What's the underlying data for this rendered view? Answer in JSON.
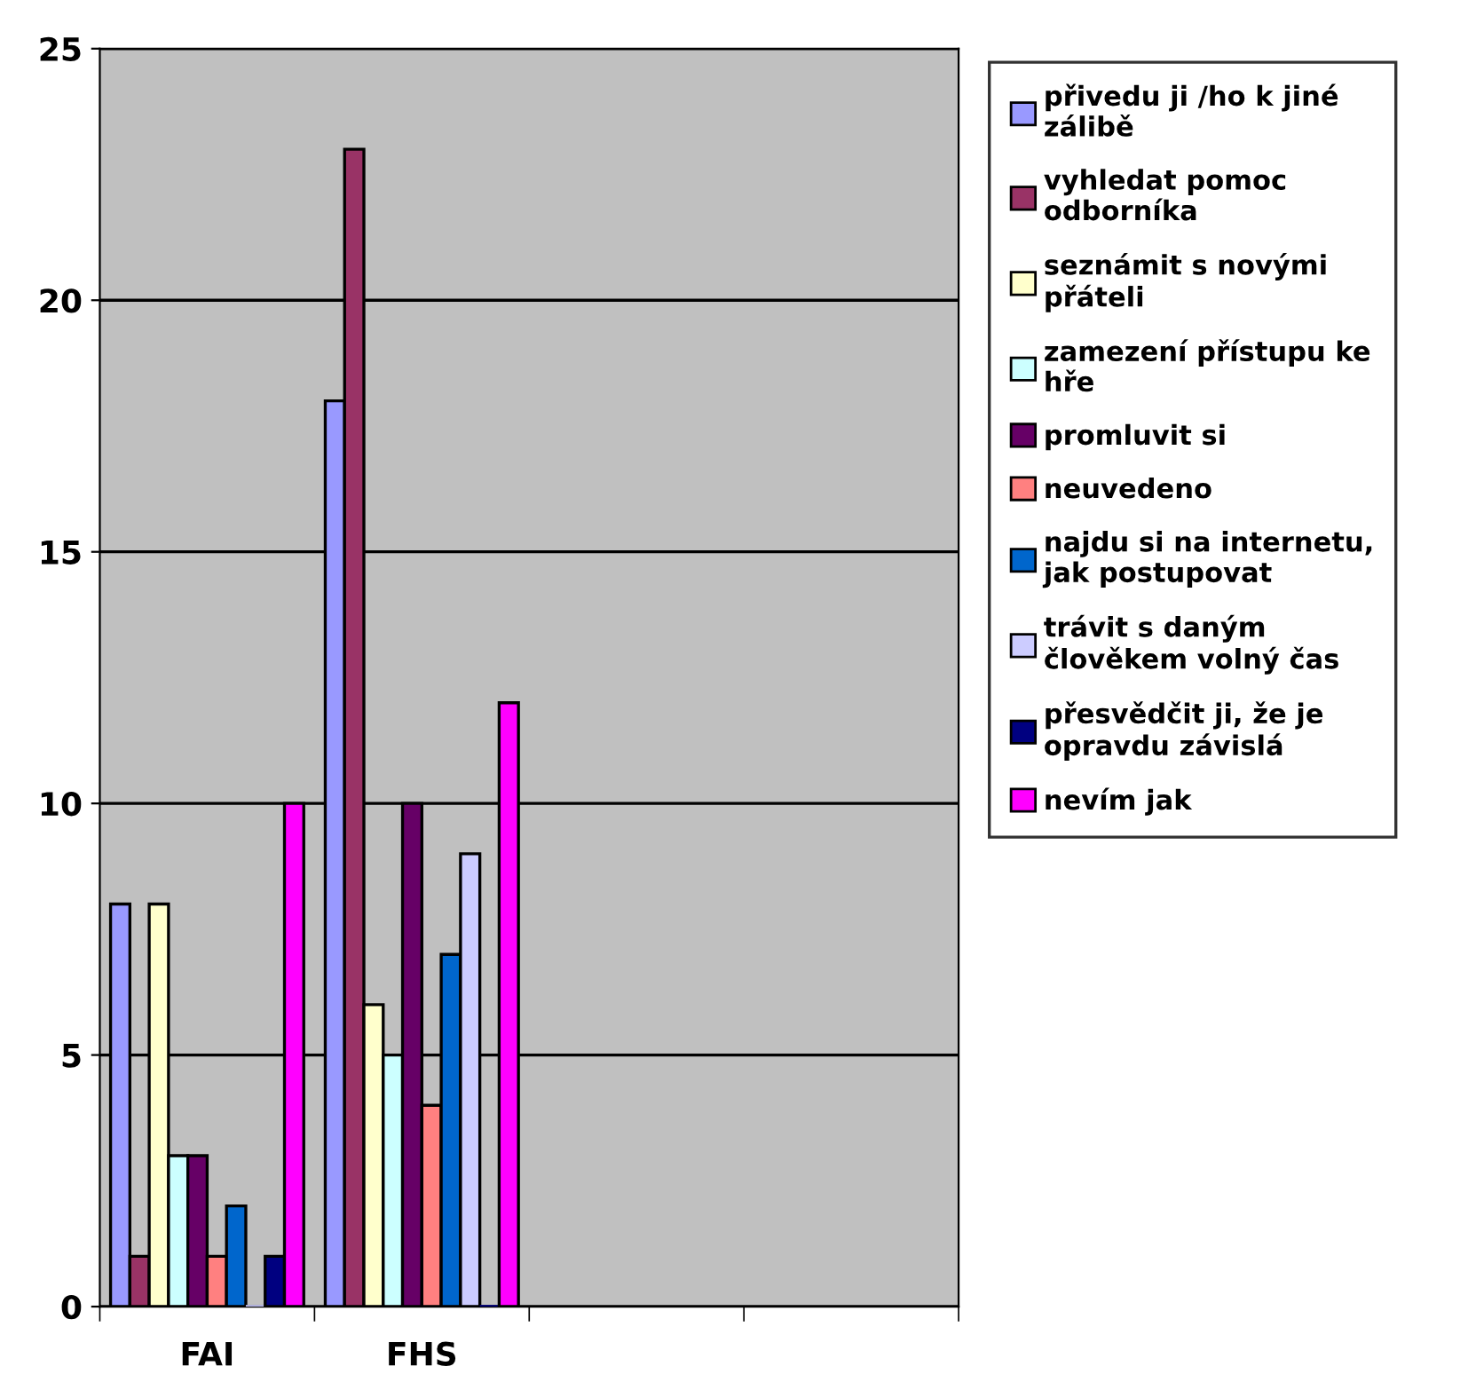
{
  "chart_data": {
    "type": "bar",
    "categories": [
      "FAI",
      "FHS",
      null,
      null
    ],
    "series": [
      {
        "name": "přivedu ji /ho k jiné zálibě",
        "color": "#9999ff",
        "values": [
          8,
          18,
          null,
          null
        ]
      },
      {
        "name": "vyhledat pomoc odborníka",
        "color": "#993366",
        "values": [
          1,
          23,
          null,
          null
        ]
      },
      {
        "name": "seznámit s novými přáteli",
        "color": "#ffffcc",
        "values": [
          8,
          6,
          null,
          null
        ]
      },
      {
        "name": "zamezení přístupu ke hře",
        "color": "#ccffff",
        "values": [
          3,
          5,
          null,
          null
        ]
      },
      {
        "name": "promluvit si",
        "color": "#660066",
        "values": [
          3,
          10,
          null,
          null
        ]
      },
      {
        "name": "neuvedeno",
        "color": "#ff8080",
        "values": [
          1,
          4,
          null,
          null
        ]
      },
      {
        "name": "najdu si na internetu, jak postupovat",
        "color": "#0066cc",
        "values": [
          2,
          7,
          null,
          null
        ]
      },
      {
        "name": "trávit s daným člověkem volný čas",
        "color": "#ccccff",
        "values": [
          0,
          9,
          null,
          null
        ]
      },
      {
        "name": "přesvědčit ji, že je opravdu závislá",
        "color": "#000080",
        "values": [
          1,
          0,
          null,
          null
        ]
      },
      {
        "name": "nevím jak",
        "color": "#ff00ff",
        "values": [
          10,
          12,
          null,
          null
        ]
      }
    ],
    "ylim": [
      0,
      25
    ],
    "yticks": [
      0,
      5,
      10,
      15,
      20,
      25
    ],
    "grid": "y",
    "legend": "right"
  }
}
